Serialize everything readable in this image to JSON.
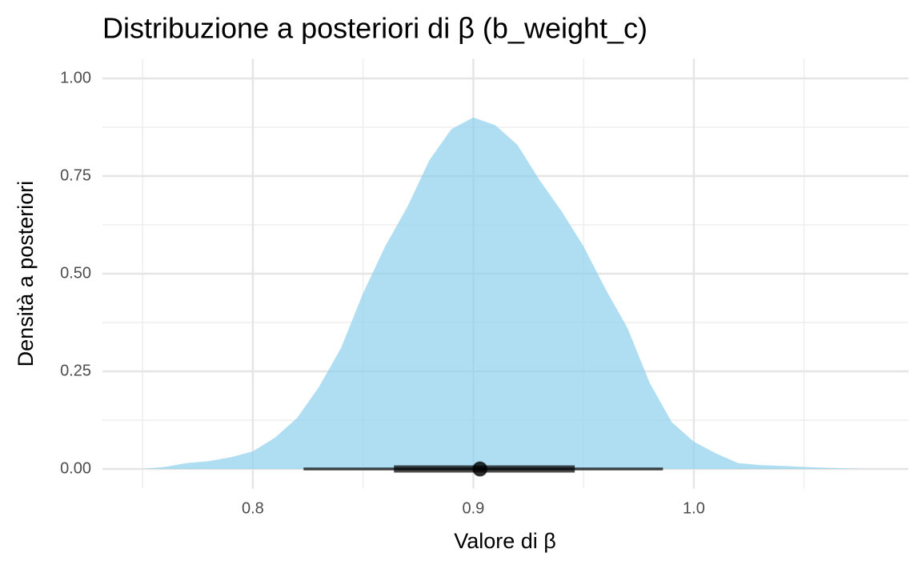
{
  "chart_data": {
    "type": "halfeye",
    "title": "Distribuzione a posteriori di β (b_weight_c)",
    "xlabel": "Valore di β",
    "ylabel": "Densità a posteriori",
    "x": [
      0.75,
      0.76,
      0.77,
      0.78,
      0.79,
      0.8,
      0.81,
      0.82,
      0.83,
      0.84,
      0.85,
      0.86,
      0.87,
      0.88,
      0.89,
      0.9,
      0.91,
      0.92,
      0.93,
      0.94,
      0.95,
      0.96,
      0.97,
      0.98,
      0.99,
      1.0,
      1.01,
      1.02,
      1.03,
      1.04,
      1.05,
      1.06,
      1.07,
      1.08
    ],
    "density": [
      0.0,
      0.005,
      0.015,
      0.02,
      0.03,
      0.045,
      0.08,
      0.13,
      0.21,
      0.31,
      0.45,
      0.57,
      0.67,
      0.79,
      0.87,
      0.9,
      0.88,
      0.83,
      0.74,
      0.66,
      0.57,
      0.46,
      0.36,
      0.22,
      0.12,
      0.07,
      0.04,
      0.015,
      0.01,
      0.008,
      0.005,
      0.003,
      0.001,
      0.0
    ],
    "color": "#87ceeb",
    "point_estimate": 0.903,
    "intervals": [
      {
        "low": 0.823,
        "high": 0.986
      },
      {
        "low": 0.864,
        "high": 0.946
      }
    ],
    "interval_color": "#000000",
    "xlim": [
      0.7318,
      1.0973
    ],
    "ylim": [
      -0.05,
      1.05
    ],
    "xticks": [
      0.8,
      0.9,
      {
        "value": 1.0,
        "label": "1.0"
      }
    ],
    "yticks": [
      {
        "value": 0,
        "label": "0.00"
      },
      0.25,
      {
        "value": 0.5,
        "label": "0.50"
      },
      0.75,
      {
        "value": 1,
        "label": "1.00"
      }
    ],
    "xminor": [
      0.75,
      0.85,
      0.95,
      1.05
    ],
    "yminor": [
      0.125,
      0.375,
      0.625,
      0.875
    ],
    "grid": true
  }
}
